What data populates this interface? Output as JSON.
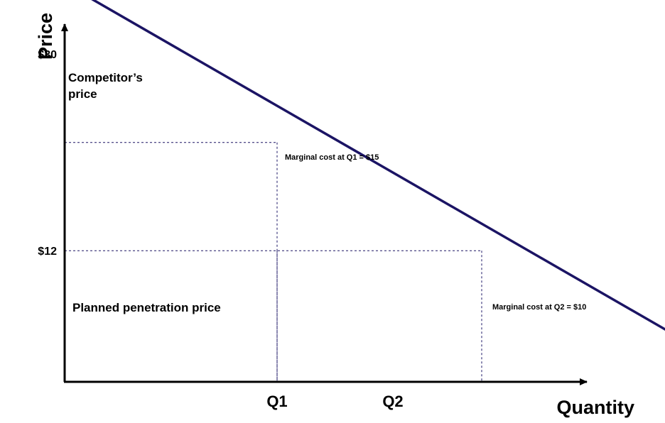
{
  "chart_data": {
    "type": "line",
    "title": "",
    "xlabel": "Quantity",
    "ylabel": "Price",
    "y_ticks": [
      {
        "value": 30,
        "label": "$30"
      },
      {
        "value": 12,
        "label": "$12"
      }
    ],
    "x_ticks": [
      {
        "value": 1,
        "label": "Q1"
      },
      {
        "value": 2,
        "label": "Q2"
      }
    ],
    "series": [
      {
        "color": "#1b1464",
        "x": [
          0.13,
          3.13
        ],
        "y": [
          35.0,
          1.4
        ]
      }
    ],
    "reference_points": [
      {
        "x": 1.0,
        "y": 21.9
      },
      {
        "x": 2.0,
        "y": 12.0
      }
    ],
    "annotations": {
      "competitor_line1": "Competitor’s",
      "competitor_line2": "price",
      "penetration": "Planned penetration price",
      "mc_q1": "Marginal cost at Q1 = $15",
      "mc_q2": "Marginal cost at Q2 = $10"
    },
    "grid": false,
    "legend": "none"
  }
}
